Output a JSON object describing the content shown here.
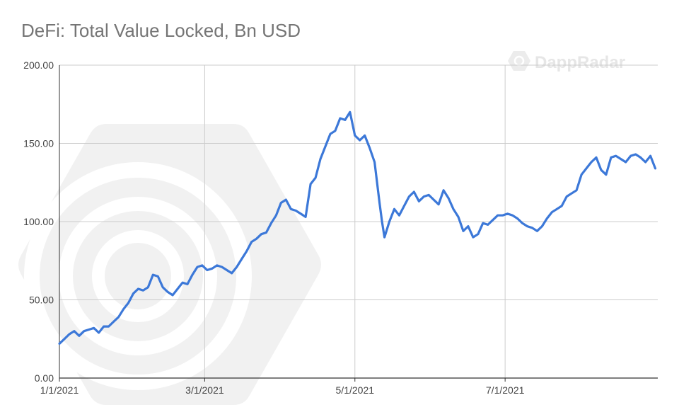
{
  "page": {
    "title": "DeFi: Total Value Locked, Bn USD",
    "watermark": "DappRadar"
  },
  "colors": {
    "line": "#3c78d8",
    "grid": "#cccccc",
    "axis": "#333333",
    "watermark": "#efefef",
    "title": "#757575"
  },
  "chart_data": {
    "type": "line",
    "title": "DeFi: Total Value Locked, Bn USD",
    "xlabel": "",
    "ylabel": "",
    "x_start": "2021-01-01",
    "x_end": "2021-09-01",
    "ylim": [
      0,
      200
    ],
    "y_ticks": [
      "0.00",
      "50.00",
      "100.00",
      "150.00",
      "200.00"
    ],
    "x_ticks": [
      {
        "date": "2021-01-01",
        "label": "1/1/2021"
      },
      {
        "date": "2021-03-01",
        "label": "3/1/2021"
      },
      {
        "date": "2021-05-01",
        "label": "5/1/2021"
      },
      {
        "date": "2021-07-01",
        "label": "7/1/2021"
      }
    ],
    "grid": true,
    "legend": "none",
    "series": [
      {
        "x": [
          "2021-01-01",
          "2021-01-03",
          "2021-01-05",
          "2021-01-07",
          "2021-01-09",
          "2021-01-11",
          "2021-01-13",
          "2021-01-15",
          "2021-01-17",
          "2021-01-19",
          "2021-01-21",
          "2021-01-23",
          "2021-01-25",
          "2021-01-27",
          "2021-01-29",
          "2021-01-31",
          "2021-02-02",
          "2021-02-04",
          "2021-02-06",
          "2021-02-08",
          "2021-02-10",
          "2021-02-12",
          "2021-02-14",
          "2021-02-16",
          "2021-02-18",
          "2021-02-20",
          "2021-02-22",
          "2021-02-24",
          "2021-02-26",
          "2021-02-28",
          "2021-03-02",
          "2021-03-04",
          "2021-03-06",
          "2021-03-08",
          "2021-03-10",
          "2021-03-12",
          "2021-03-14",
          "2021-03-16",
          "2021-03-18",
          "2021-03-20",
          "2021-03-22",
          "2021-03-24",
          "2021-03-26",
          "2021-03-28",
          "2021-03-30",
          "2021-04-01",
          "2021-04-03",
          "2021-04-05",
          "2021-04-07",
          "2021-04-09",
          "2021-04-11",
          "2021-04-13",
          "2021-04-15",
          "2021-04-17",
          "2021-04-19",
          "2021-04-21",
          "2021-04-23",
          "2021-04-25",
          "2021-04-27",
          "2021-04-29",
          "2021-05-01",
          "2021-05-03",
          "2021-05-05",
          "2021-05-07",
          "2021-05-09",
          "2021-05-11",
          "2021-05-12",
          "2021-05-13",
          "2021-05-15",
          "2021-05-17",
          "2021-05-19",
          "2021-05-21",
          "2021-05-23",
          "2021-05-25",
          "2021-05-27",
          "2021-05-29",
          "2021-05-31",
          "2021-06-02",
          "2021-06-04",
          "2021-06-06",
          "2021-06-08",
          "2021-06-10",
          "2021-06-12",
          "2021-06-14",
          "2021-06-16",
          "2021-06-18",
          "2021-06-20",
          "2021-06-22",
          "2021-06-24",
          "2021-06-26",
          "2021-06-28",
          "2021-06-30",
          "2021-07-02",
          "2021-07-04",
          "2021-07-06",
          "2021-07-08",
          "2021-07-10",
          "2021-07-12",
          "2021-07-14",
          "2021-07-16",
          "2021-07-18",
          "2021-07-20",
          "2021-07-22",
          "2021-07-24",
          "2021-07-26",
          "2021-07-28",
          "2021-07-30",
          "2021-08-01",
          "2021-08-03",
          "2021-08-05",
          "2021-08-07",
          "2021-08-09",
          "2021-08-11",
          "2021-08-13",
          "2021-08-15",
          "2021-08-17",
          "2021-08-19",
          "2021-08-21",
          "2021-08-23",
          "2021-08-25",
          "2021-08-27",
          "2021-08-29",
          "2021-08-31"
        ],
        "values": [
          22,
          25,
          28,
          30,
          27,
          30,
          31,
          32,
          29,
          33,
          33,
          36,
          39,
          44,
          48,
          54,
          57,
          56,
          58,
          66,
          65,
          58,
          55,
          53,
          57,
          61,
          60,
          66,
          71,
          72,
          69,
          70,
          72,
          71,
          69,
          67,
          71,
          76,
          81,
          87,
          89,
          92,
          93,
          99,
          104,
          112,
          114,
          108,
          107,
          105,
          103,
          124,
          128,
          140,
          148,
          156,
          158,
          166,
          165,
          170,
          155,
          152,
          155,
          147,
          138,
          112,
          100,
          90,
          100,
          108,
          104,
          110,
          116,
          119,
          113,
          116,
          117,
          114,
          111,
          120,
          115,
          108,
          103,
          94,
          97,
          90,
          92,
          99,
          98,
          101,
          104,
          104,
          105,
          104,
          102,
          99,
          97,
          96,
          94,
          97,
          102,
          106,
          108,
          110,
          116,
          118,
          120,
          130,
          134,
          138,
          141,
          133,
          130,
          141,
          142,
          140,
          138,
          142,
          143,
          141,
          138,
          142,
          134
        ]
      }
    ]
  }
}
